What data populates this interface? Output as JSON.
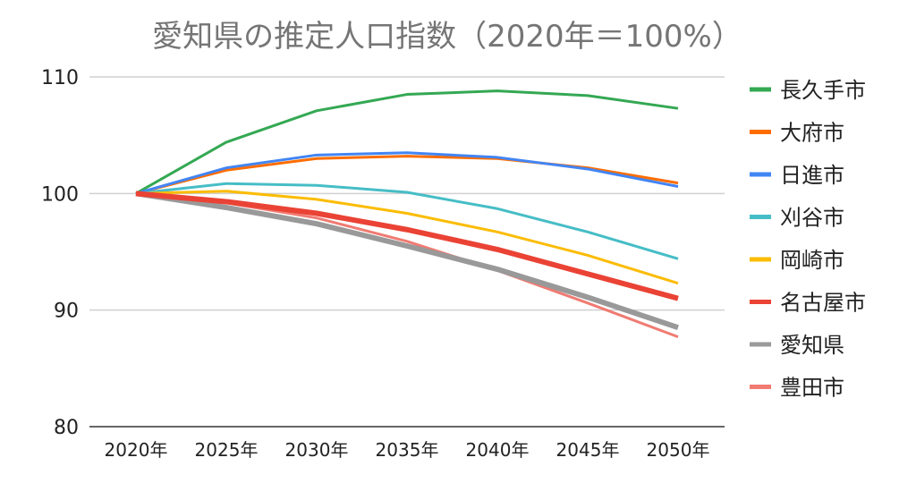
{
  "chart_data": {
    "type": "line",
    "title": "愛知県の推定人口指数（2020年＝100%）",
    "xlabel": "",
    "ylabel": "",
    "categories": [
      "2020年",
      "2025年",
      "2030年",
      "2035年",
      "2040年",
      "2045年",
      "2050年"
    ],
    "ylim": [
      80,
      110
    ],
    "yticks": [
      "80",
      "90",
      "100",
      "110"
    ],
    "grid": true,
    "legend_position": "right",
    "series": [
      {
        "name": "長久手市",
        "color": "#34a853",
        "values": [
          100,
          104.4,
          107.1,
          108.5,
          108.8,
          108.4,
          107.3
        ]
      },
      {
        "name": "大府市",
        "color": "#ff6d01",
        "values": [
          100,
          102.0,
          103.0,
          103.2,
          103.0,
          102.2,
          100.9
        ]
      },
      {
        "name": "日進市",
        "color": "#4285f4",
        "values": [
          100,
          102.2,
          103.3,
          103.5,
          103.1,
          102.1,
          100.6
        ]
      },
      {
        "name": "刈谷市",
        "color": "#46bdc6",
        "values": [
          100,
          100.85,
          100.7,
          100.1,
          98.7,
          96.7,
          94.4
        ]
      },
      {
        "name": "岡崎市",
        "color": "#fbbc04",
        "values": [
          100,
          100.2,
          99.5,
          98.3,
          96.7,
          94.7,
          92.3
        ]
      },
      {
        "name": "名古屋市",
        "color": "#ea4335",
        "values": [
          100,
          99.3,
          98.3,
          96.9,
          95.2,
          93.1,
          91.0
        ],
        "bold": true
      },
      {
        "name": "愛知県",
        "color": "#999999",
        "values": [
          100,
          98.8,
          97.4,
          95.5,
          93.5,
          91.1,
          88.5
        ],
        "bold": true
      },
      {
        "name": "豊田市",
        "color": "#f07b72",
        "values": [
          100,
          99.2,
          97.9,
          95.9,
          93.4,
          90.6,
          87.7
        ]
      }
    ]
  }
}
